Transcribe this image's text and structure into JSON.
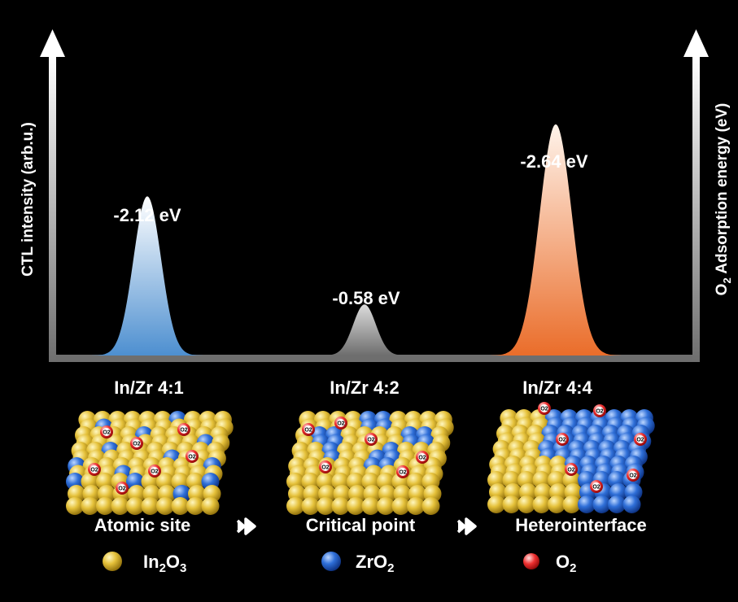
{
  "axes": {
    "left_label": "CTL intensity (arb.u.)",
    "right_label": "O",
    "right_label_sub": "2",
    "right_label_rest": " Adsorption energy (eV)"
  },
  "peaks": [
    {
      "energy_label": "-2.12 eV",
      "category": "In/Zr 4:1",
      "height": 0.53,
      "color": "#6fa8dc"
    },
    {
      "energy_label": "-0.58 eV",
      "category": "In/Zr 4:2",
      "height": 0.17,
      "color": "#8a8a8a"
    },
    {
      "energy_label": "-2.64 eV",
      "category": "In/Zr 4:4",
      "height": 0.77,
      "color": "#f08a4b"
    }
  ],
  "stages": {
    "stage1": "Atomic site",
    "stage2": "Critical point",
    "stage3": "Heterointerface"
  },
  "legend": {
    "in2o3": {
      "a": "In",
      "b": "2",
      "c": "O",
      "d": "3"
    },
    "zro2": {
      "a": "ZrO",
      "b": "2"
    },
    "o2": {
      "a": "O",
      "b": "2"
    }
  },
  "o2_label": "O",
  "o2_label_sub": "2"
}
